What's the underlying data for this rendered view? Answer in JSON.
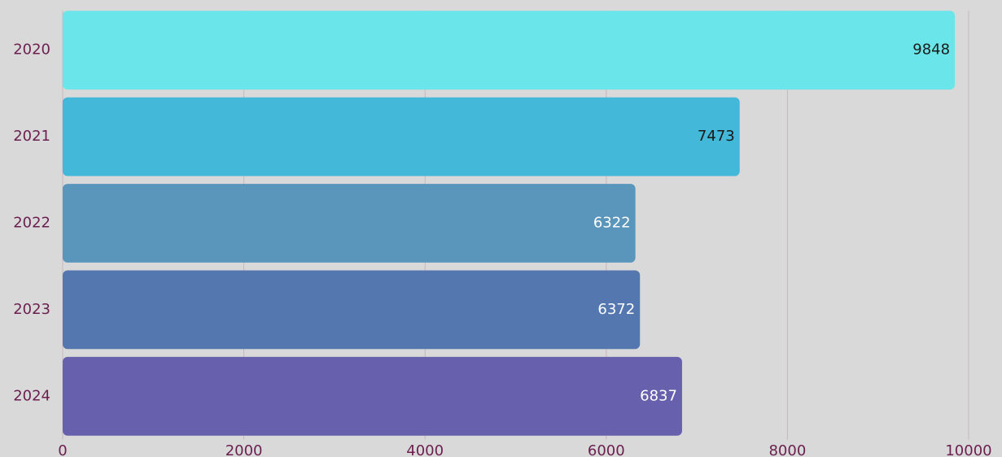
{
  "chart_data": {
    "type": "bar",
    "orientation": "horizontal",
    "categories": [
      "2020",
      "2021",
      "2022",
      "2023",
      "2024"
    ],
    "values": [
      9848,
      7473,
      6322,
      6372,
      6837
    ],
    "colors": [
      "#6ae6ea",
      "#43b8d8",
      "#5a96bc",
      "#5577b0",
      "#6761ad"
    ],
    "label_colors": [
      "#1a1a1a",
      "#1a1a1a",
      "#ffffff",
      "#ffffff",
      "#ffffff"
    ],
    "xlim": [
      0,
      10000
    ],
    "xticks": [
      0,
      2000,
      4000,
      6000,
      8000,
      10000
    ],
    "grid": true
  }
}
